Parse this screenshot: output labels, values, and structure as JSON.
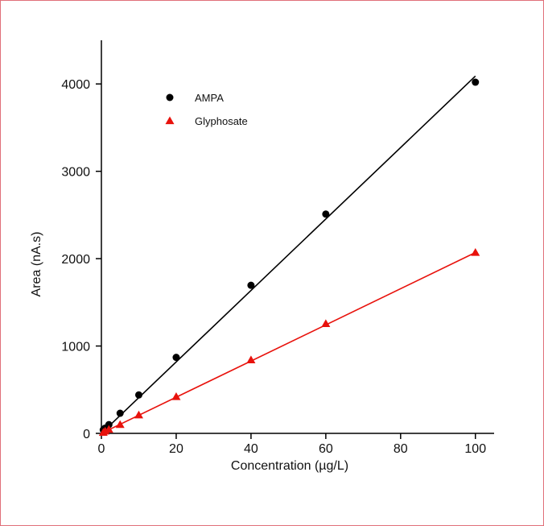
{
  "chart_data": {
    "type": "scatter",
    "xlabel": "Concentration (µg/L)",
    "ylabel": "Area (nA.s)",
    "xlim": [
      0,
      105
    ],
    "ylim": [
      0,
      4500
    ],
    "xticks": [
      0,
      20,
      40,
      60,
      80,
      100
    ],
    "yticks": [
      0,
      1000,
      2000,
      3000,
      4000
    ],
    "xtick_labels": [
      "0",
      "20",
      "40",
      "60",
      "80",
      "100"
    ],
    "ytick_labels": [
      "0",
      "1000",
      "2000",
      "3000",
      "4000"
    ],
    "grid": false,
    "legend_position": "top-left",
    "series": [
      {
        "name": "AMPA",
        "marker": "circle",
        "color": "#000000",
        "points": [
          {
            "x": 0.5,
            "y": 40
          },
          {
            "x": 1,
            "y": 60
          },
          {
            "x": 2,
            "y": 100
          },
          {
            "x": 5,
            "y": 230
          },
          {
            "x": 10,
            "y": 440
          },
          {
            "x": 20,
            "y": 870
          },
          {
            "x": 40,
            "y": 1695
          },
          {
            "x": 60,
            "y": 2510
          },
          {
            "x": 100,
            "y": 4020
          }
        ],
        "fit": {
          "x": [
            0,
            100
          ],
          "y": [
            0,
            4090
          ]
        }
      },
      {
        "name": "Glyphosate",
        "marker": "triangle",
        "color": "#e8120c",
        "points": [
          {
            "x": 0.5,
            "y": 10
          },
          {
            "x": 1,
            "y": 25
          },
          {
            "x": 2,
            "y": 45
          },
          {
            "x": 5,
            "y": 100
          },
          {
            "x": 10,
            "y": 210
          },
          {
            "x": 20,
            "y": 420
          },
          {
            "x": 40,
            "y": 840
          },
          {
            "x": 60,
            "y": 1255
          },
          {
            "x": 100,
            "y": 2070
          }
        ],
        "fit": {
          "x": [
            0,
            100
          ],
          "y": [
            0,
            2070
          ]
        }
      }
    ]
  }
}
